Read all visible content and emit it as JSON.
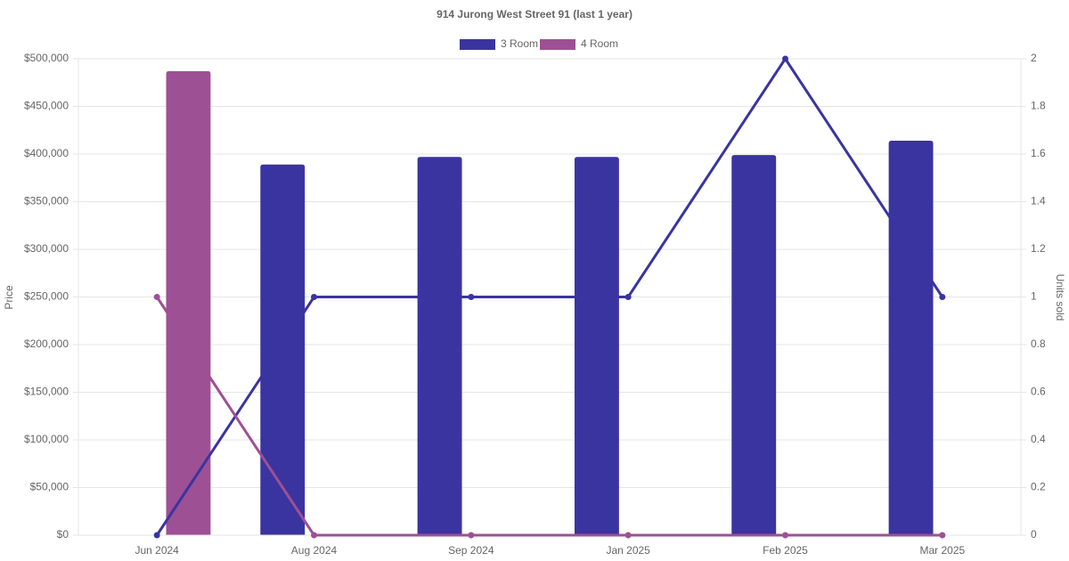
{
  "chart_data": {
    "type": "bar-line",
    "title": "914 Jurong West Street 91 (last 1 year)",
    "y_label": "Price",
    "y2_label": "Units sold",
    "categories": [
      "Jun 2024",
      "Aug 2024",
      "Sep 2024",
      "Jan 2025",
      "Feb 2025",
      "Mar 2025"
    ],
    "series": [
      {
        "name": "3 Room",
        "color": "#3a34a0",
        "values": [
          null,
          389000,
          397000,
          397000,
          399000,
          414000
        ],
        "units": [
          0,
          1,
          1,
          1,
          2,
          1
        ]
      },
      {
        "name": "4 Room",
        "color": "#9e5094",
        "values": [
          487000,
          null,
          null,
          null,
          null,
          null
        ],
        "units": [
          1,
          0,
          0,
          0,
          0,
          0
        ]
      }
    ],
    "ylim": [
      0,
      500000
    ],
    "yticks": [
      {
        "value": 0,
        "label": "$0"
      },
      {
        "value": 50000,
        "label": "$50,000"
      },
      {
        "value": 100000,
        "label": "$100,000"
      },
      {
        "value": 150000,
        "label": "$150,000"
      },
      {
        "value": 200000,
        "label": "$200,000"
      },
      {
        "value": 250000,
        "label": "$250,000"
      },
      {
        "value": 300000,
        "label": "$300,000"
      },
      {
        "value": 350000,
        "label": "$350,000"
      },
      {
        "value": 400000,
        "label": "$400,000"
      },
      {
        "value": 450000,
        "label": "$450,000"
      },
      {
        "value": 500000,
        "label": "$500,000"
      }
    ],
    "y2lim": [
      0,
      2
    ],
    "y2ticks": [
      0,
      0.2,
      0.4,
      0.6,
      0.8,
      1,
      1.2,
      1.4,
      1.6,
      1.8,
      2
    ],
    "grid": true
  }
}
